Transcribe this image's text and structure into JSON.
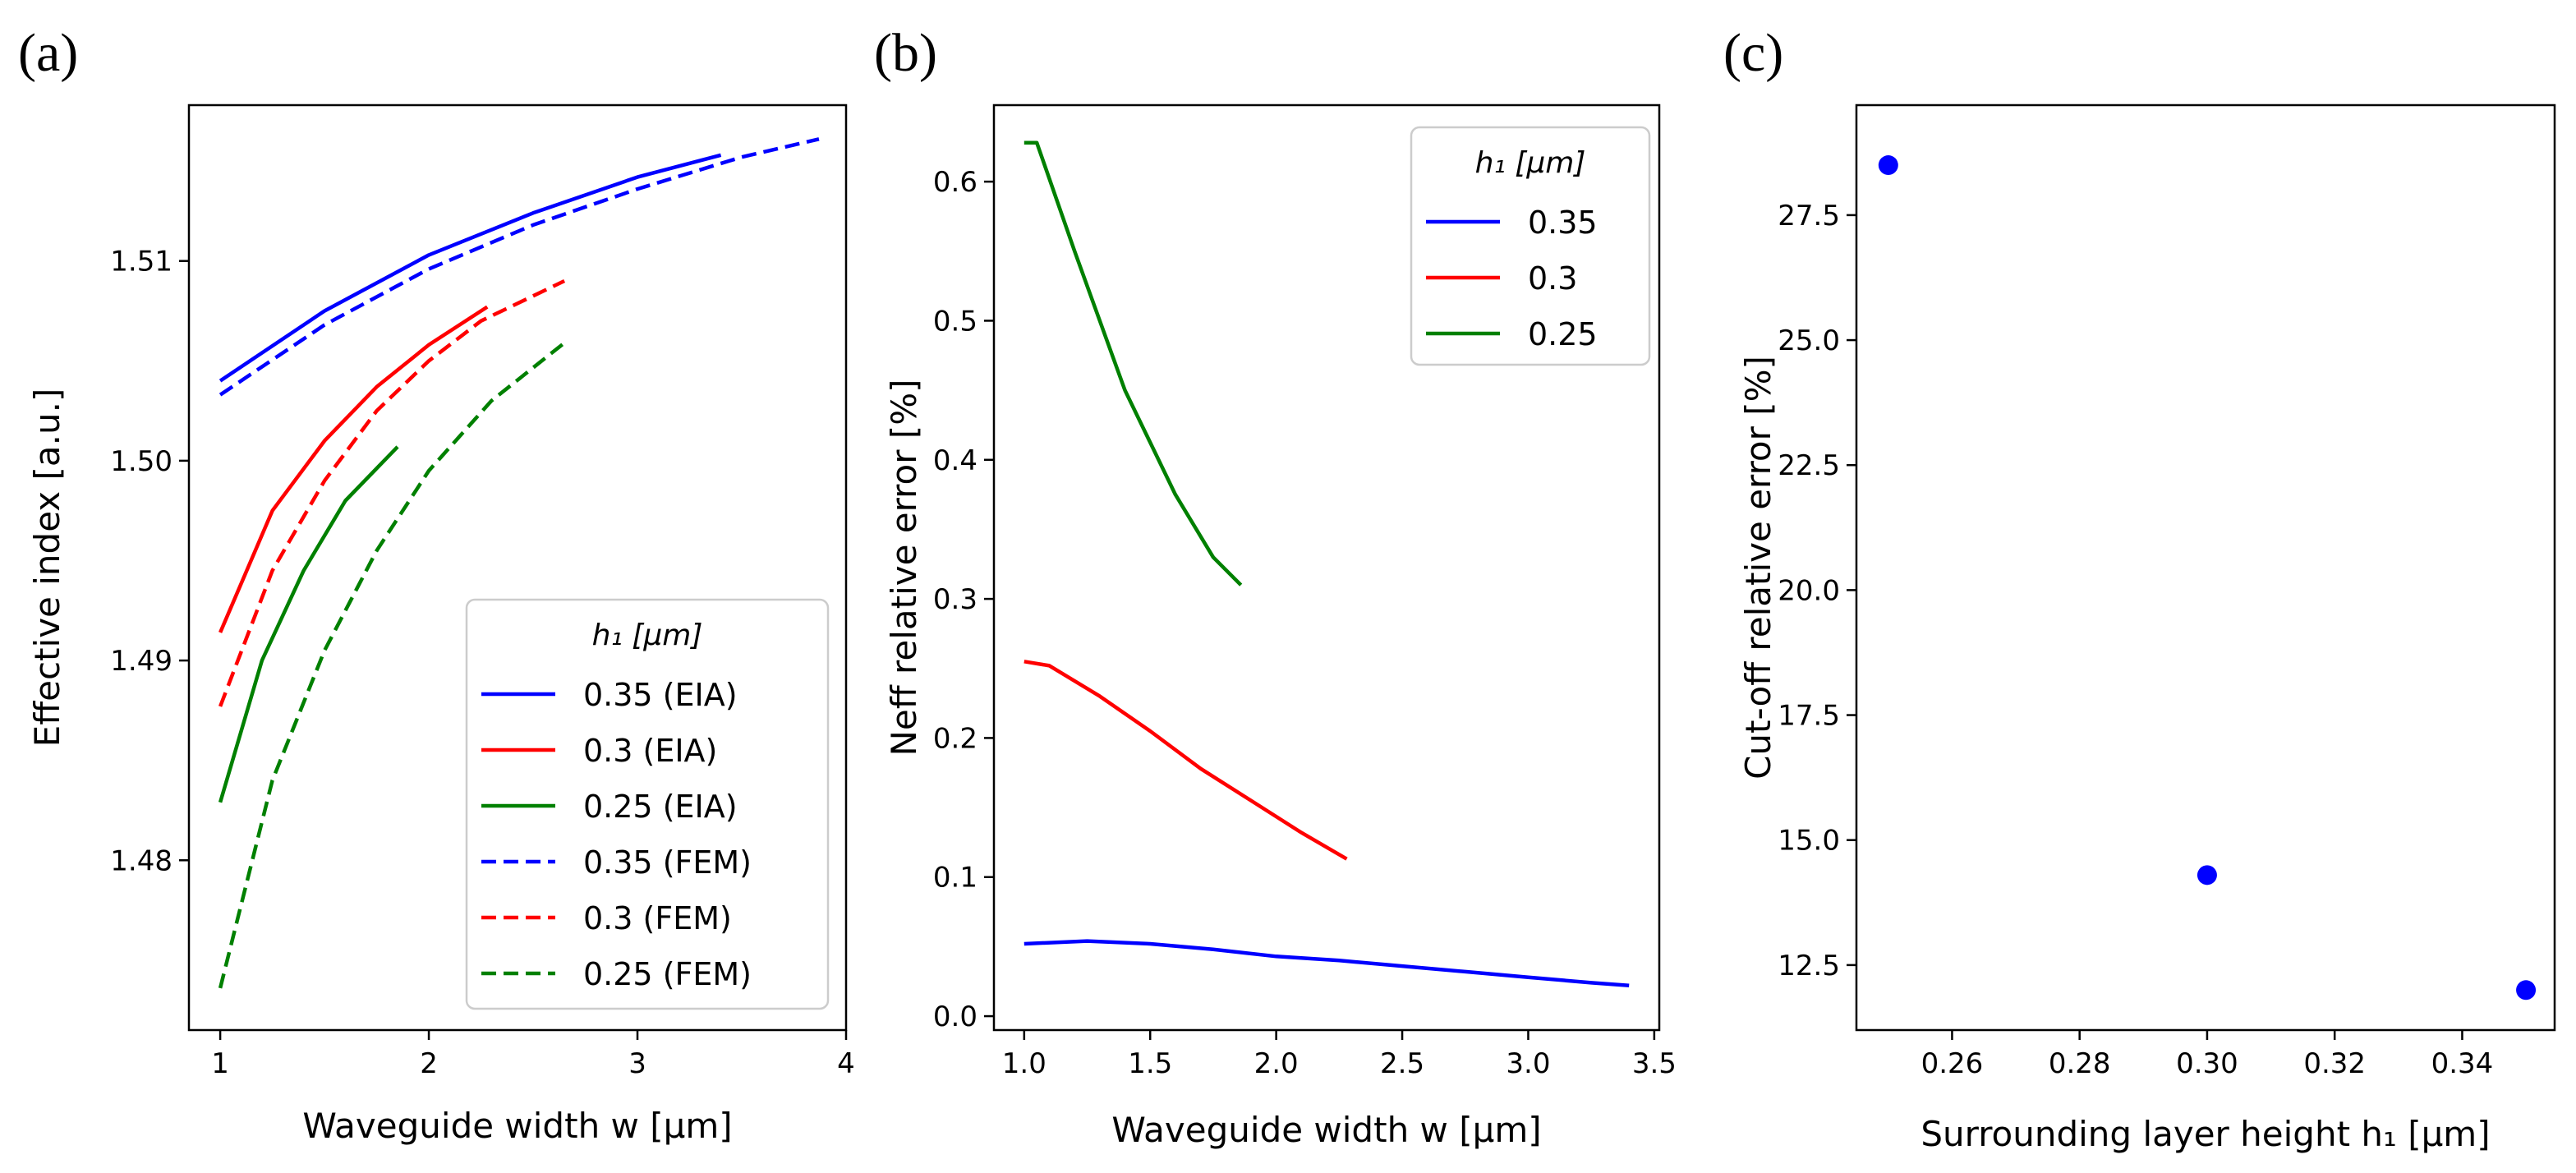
{
  "chart_data": [
    {
      "panel_label": "(a)",
      "type": "line",
      "xlabel": "Waveguide width w [μm]",
      "ylabel": "Effective index [a.u.]",
      "xlim": [
        0.85,
        4.0
      ],
      "ylim": [
        1.4715,
        1.5178
      ],
      "xticks": [
        1,
        2,
        3,
        4
      ],
      "yticks": [
        1.48,
        1.49,
        1.5,
        1.51
      ],
      "ytick_labels": [
        "1.48",
        "1.49",
        "1.50",
        "1.51"
      ],
      "legend": {
        "title": "h₁ [μm]",
        "placement": "lower-right"
      },
      "series": [
        {
          "name": "0.35 (EIA)",
          "color": "#0000ff",
          "dash": "solid",
          "x": [
            1.0,
            1.5,
            2.0,
            2.5,
            3.0,
            3.4
          ],
          "y": [
            1.504,
            1.5075,
            1.5103,
            1.5124,
            1.5142,
            1.5153
          ]
        },
        {
          "name": "0.3 (EIA)",
          "color": "#ff0000",
          "dash": "solid",
          "x": [
            1.0,
            1.25,
            1.5,
            1.75,
            2.0,
            2.28
          ],
          "y": [
            1.4914,
            1.4975,
            1.501,
            1.5037,
            1.5058,
            1.5077
          ]
        },
        {
          "name": "0.25 (EIA)",
          "color": "#008000",
          "dash": "solid",
          "x": [
            1.0,
            1.2,
            1.4,
            1.6,
            1.85
          ],
          "y": [
            1.4829,
            1.49,
            1.4945,
            1.498,
            1.5007
          ]
        },
        {
          "name": "0.35 (FEM)",
          "color": "#0000ff",
          "dash": "dashed",
          "x": [
            1.0,
            1.5,
            2.0,
            2.5,
            3.0,
            3.5,
            3.87
          ],
          "y": [
            1.5033,
            1.5068,
            1.5096,
            1.5118,
            1.5136,
            1.5152,
            1.5161
          ]
        },
        {
          "name": "0.3 (FEM)",
          "color": "#ff0000",
          "dash": "dashed",
          "x": [
            1.0,
            1.25,
            1.5,
            1.75,
            2.0,
            2.25,
            2.65
          ],
          "y": [
            1.4877,
            1.4945,
            1.499,
            1.5025,
            1.505,
            1.507,
            1.509
          ]
        },
        {
          "name": "0.25 (FEM)",
          "color": "#008000",
          "dash": "dashed",
          "x": [
            1.0,
            1.25,
            1.5,
            1.75,
            2.0,
            2.3,
            2.65
          ],
          "y": [
            1.4736,
            1.484,
            1.4905,
            1.4955,
            1.4995,
            1.503,
            1.5059
          ]
        }
      ]
    },
    {
      "panel_label": "(b)",
      "type": "line",
      "xlabel": "Waveguide width w [μm]",
      "ylabel": "Neff relative error [%]",
      "xlim": [
        0.88,
        3.52
      ],
      "ylim": [
        -0.01,
        0.655
      ],
      "xticks": [
        1.0,
        1.5,
        2.0,
        2.5,
        3.0,
        3.5
      ],
      "xtick_labels": [
        "1.0",
        "1.5",
        "2.0",
        "2.5",
        "3.0",
        "3.5"
      ],
      "yticks": [
        0.0,
        0.1,
        0.2,
        0.3,
        0.4,
        0.5,
        0.6
      ],
      "ytick_labels": [
        "0.0",
        "0.1",
        "0.2",
        "0.3",
        "0.4",
        "0.5",
        "0.6"
      ],
      "legend": {
        "title": "h₁ [μm]",
        "placement": "upper-right"
      },
      "series": [
        {
          "name": "0.35",
          "color": "#0000ff",
          "x": [
            1.0,
            1.25,
            1.5,
            1.75,
            2.0,
            2.25,
            2.5,
            2.75,
            3.0,
            3.25,
            3.4
          ],
          "y": [
            0.052,
            0.054,
            0.052,
            0.048,
            0.043,
            0.04,
            0.036,
            0.032,
            0.028,
            0.024,
            0.022
          ]
        },
        {
          "name": "0.3",
          "color": "#ff0000",
          "x": [
            1.0,
            1.1,
            1.3,
            1.5,
            1.7,
            1.9,
            2.1,
            2.28
          ],
          "y": [
            0.255,
            0.252,
            0.23,
            0.205,
            0.178,
            0.155,
            0.132,
            0.113
          ]
        },
        {
          "name": "0.25",
          "color": "#008000",
          "x": [
            1.0,
            1.05,
            1.2,
            1.4,
            1.6,
            1.75,
            1.86
          ],
          "y": [
            0.628,
            0.628,
            0.55,
            0.45,
            0.375,
            0.33,
            0.31
          ]
        }
      ]
    },
    {
      "panel_label": "(c)",
      "type": "scatter",
      "xlabel": "Surrounding layer height h₁ [μm]",
      "ylabel": "Cut-off relative error [%]",
      "xlim": [
        0.245,
        0.3545
      ],
      "ylim": [
        11.2,
        29.7
      ],
      "xticks": [
        0.26,
        0.28,
        0.3,
        0.32,
        0.34
      ],
      "xtick_labels": [
        "0.26",
        "0.28",
        "0.30",
        "0.32",
        "0.34"
      ],
      "yticks": [
        12.5,
        15.0,
        17.5,
        20.0,
        22.5,
        25.0,
        27.5
      ],
      "ytick_labels": [
        "12.5",
        "15.0",
        "17.5",
        "20.0",
        "22.5",
        "25.0",
        "27.5"
      ],
      "color": "#0000ff",
      "points": {
        "x": [
          0.25,
          0.3,
          0.35
        ],
        "y": [
          28.5,
          14.3,
          12.0
        ]
      }
    }
  ]
}
